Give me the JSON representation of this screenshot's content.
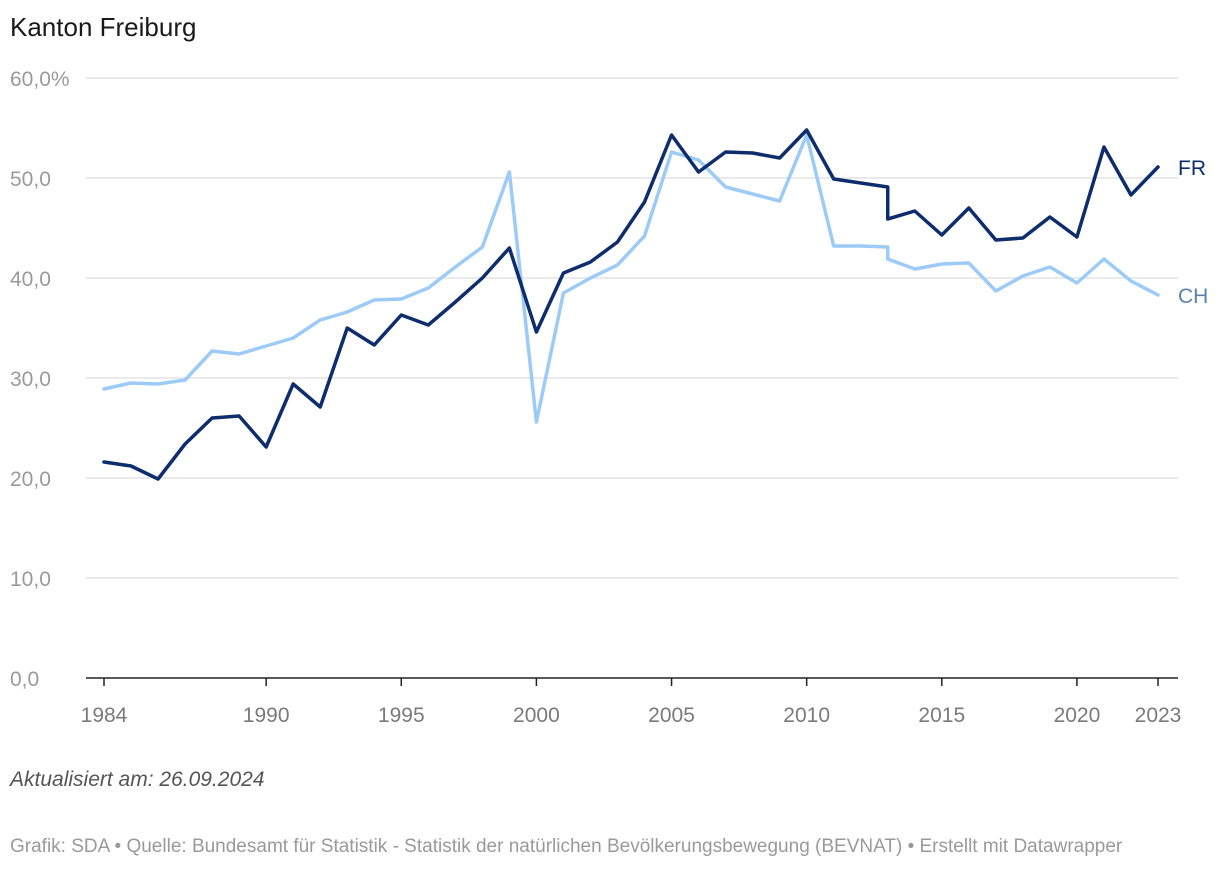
{
  "title": "Kanton Freiburg",
  "updated": "Aktualisiert am: 26.09.2024",
  "footer": "Grafik: SDA • Quelle: Bundesamt für Statistik - Statistik der natürlichen Bevölkerungsbewegung (BEVNAT) • Erstellt mit Datawrapper",
  "chart_data": {
    "type": "line",
    "title": "Kanton Freiburg",
    "xlabel": "",
    "ylabel": "",
    "ylim": [
      0,
      60
    ],
    "xlim": [
      1984,
      2023
    ],
    "y_ticks": [
      0,
      10,
      20,
      30,
      40,
      50,
      60
    ],
    "y_tick_labels": [
      "0,0",
      "10,0",
      "20,0",
      "30,0",
      "40,0",
      "50,0",
      "60,0%"
    ],
    "x_ticks": [
      1984,
      1990,
      1995,
      2000,
      2005,
      2010,
      2015,
      2020,
      2023
    ],
    "x_tick_labels": [
      "1984",
      "1990",
      "1995",
      "2000",
      "2005",
      "2010",
      "2015",
      "2020",
      "2023"
    ],
    "grid": true,
    "series": [
      {
        "name": "CH",
        "color": "#9ccbf7",
        "points": [
          [
            1984,
            28.9
          ],
          [
            1985,
            29.5
          ],
          [
            1986,
            29.4
          ],
          [
            1987,
            29.8
          ],
          [
            1988,
            32.7
          ],
          [
            1989,
            32.4
          ],
          [
            1990,
            33.2
          ],
          [
            1991,
            34.0
          ],
          [
            1992,
            35.8
          ],
          [
            1993,
            36.6
          ],
          [
            1994,
            37.8
          ],
          [
            1995,
            37.9
          ],
          [
            1996,
            39.0
          ],
          [
            1997,
            41.1
          ],
          [
            1998,
            43.1
          ],
          [
            1999,
            50.6
          ],
          [
            2000,
            25.6
          ],
          [
            2001,
            38.5
          ],
          [
            2002,
            40.0
          ],
          [
            2003,
            41.3
          ],
          [
            2004,
            44.2
          ],
          [
            2005,
            52.6
          ],
          [
            2006,
            51.8
          ],
          [
            2007,
            49.1
          ],
          [
            2008,
            48.4
          ],
          [
            2009,
            47.7
          ],
          [
            2010,
            54.3
          ],
          [
            2011,
            43.2
          ],
          [
            2012,
            43.2
          ],
          [
            2013,
            43.1
          ],
          [
            2013,
            41.9
          ],
          [
            2014,
            40.9
          ],
          [
            2015,
            41.4
          ],
          [
            2016,
            41.5
          ],
          [
            2017,
            38.7
          ],
          [
            2018,
            40.2
          ],
          [
            2019,
            41.1
          ],
          [
            2020,
            39.5
          ],
          [
            2021,
            41.9
          ],
          [
            2022,
            39.7
          ],
          [
            2023,
            38.3
          ]
        ]
      },
      {
        "name": "FR",
        "color": "#0d2d6c",
        "points": [
          [
            1984,
            21.6
          ],
          [
            1985,
            21.2
          ],
          [
            1986,
            19.9
          ],
          [
            1987,
            23.4
          ],
          [
            1988,
            26.0
          ],
          [
            1989,
            26.2
          ],
          [
            1990,
            23.1
          ],
          [
            1991,
            29.4
          ],
          [
            1992,
            27.1
          ],
          [
            1993,
            35.0
          ],
          [
            1994,
            33.3
          ],
          [
            1995,
            36.3
          ],
          [
            1996,
            35.3
          ],
          [
            1997,
            37.6
          ],
          [
            1998,
            40.0
          ],
          [
            1999,
            43.0
          ],
          [
            2000,
            34.6
          ],
          [
            2001,
            40.5
          ],
          [
            2002,
            41.6
          ],
          [
            2003,
            43.6
          ],
          [
            2004,
            47.6
          ],
          [
            2005,
            54.3
          ],
          [
            2006,
            50.6
          ],
          [
            2007,
            52.6
          ],
          [
            2008,
            52.5
          ],
          [
            2009,
            52.0
          ],
          [
            2010,
            54.8
          ],
          [
            2011,
            49.9
          ],
          [
            2012,
            49.5
          ],
          [
            2013,
            49.1
          ],
          [
            2013,
            45.9
          ],
          [
            2014,
            46.7
          ],
          [
            2015,
            44.3
          ],
          [
            2016,
            47.0
          ],
          [
            2017,
            43.8
          ],
          [
            2018,
            44.0
          ],
          [
            2019,
            46.1
          ],
          [
            2020,
            44.1
          ],
          [
            2021,
            53.1
          ],
          [
            2022,
            48.3
          ],
          [
            2023,
            51.1
          ]
        ]
      }
    ]
  }
}
